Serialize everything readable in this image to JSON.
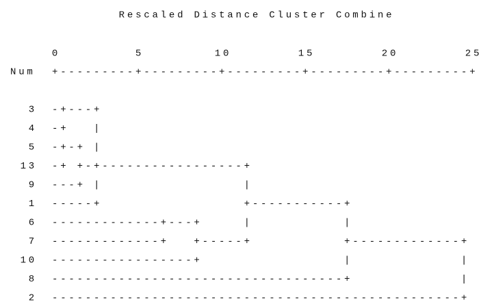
{
  "title": "Rescaled Distance Cluster Combine",
  "scale": {
    "ticks": [
      0,
      5,
      10,
      15,
      20,
      25
    ],
    "row_label": "Num",
    "line": "+---------+---------+---------+---------+---------+"
  },
  "rows": [
    {
      "label": "3",
      "line": " -+---+"
    },
    {
      "label": "4",
      "line": " -+   |"
    },
    {
      "label": "5",
      "line": " -+-+ |"
    },
    {
      "label": "13",
      "line": " -+ +-+-----------------+"
    },
    {
      "label": "9",
      "line": " ---+ |                 |"
    },
    {
      "label": "1",
      "line": " -----+                 +-----------+"
    },
    {
      "label": "6",
      "line": " -------------+---+     |           |"
    },
    {
      "label": "7",
      "line": " -------------+   +-----+           +-------------+"
    },
    {
      "label": "10",
      "line": " -----------------+                 |             |"
    },
    {
      "label": "8",
      "line": " -----------------------------------+             |"
    },
    {
      "label": "2",
      "line": " -------------------------------------------------+"
    }
  ]
}
